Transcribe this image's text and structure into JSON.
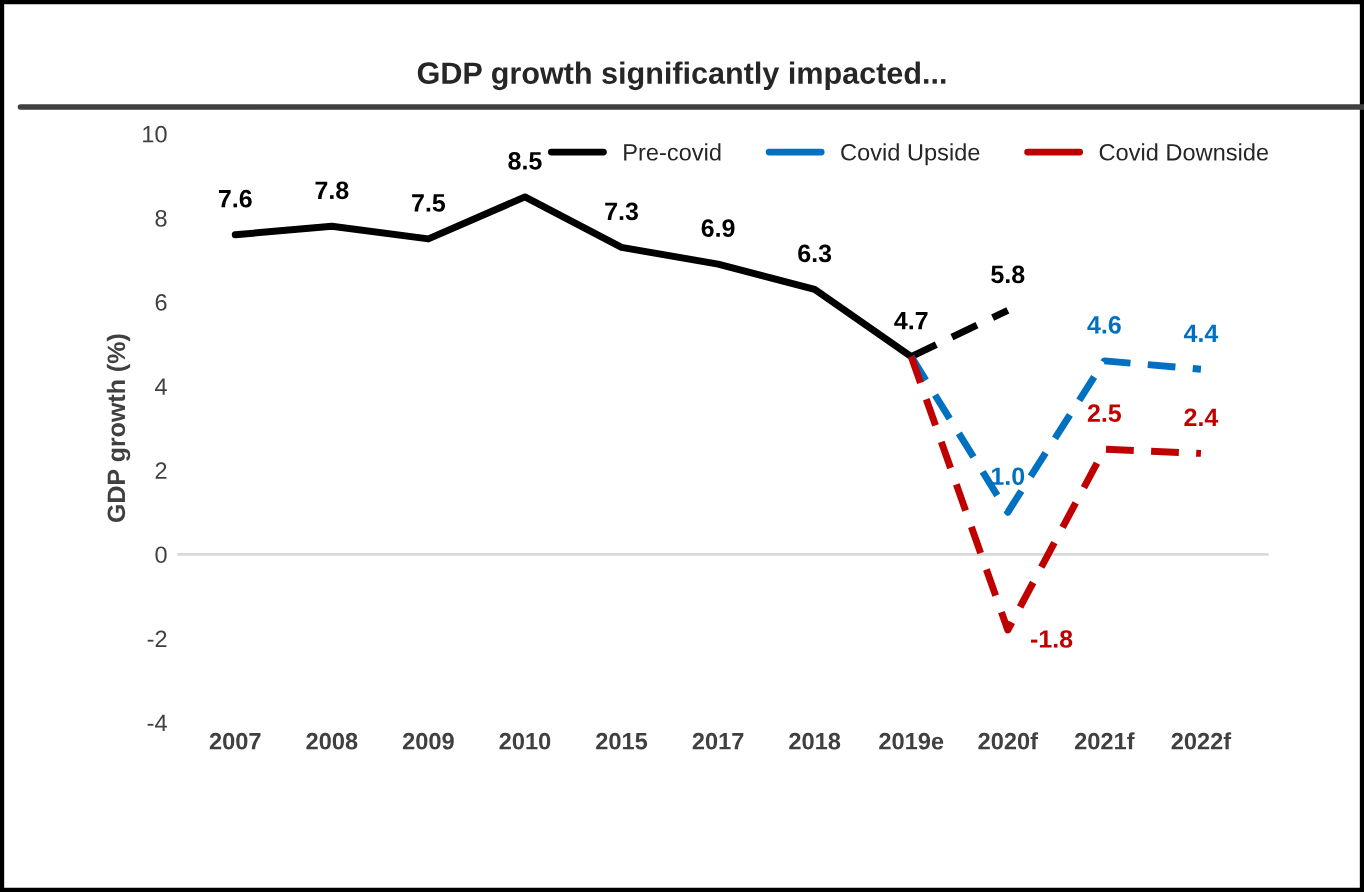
{
  "chart_data": {
    "type": "line",
    "title": "GDP growth significantly impacted...",
    "ylabel": "GDP growth (%)",
    "categories": [
      "2007",
      "2008",
      "2009",
      "2010",
      "2015",
      "2017",
      "2018",
      "2019e",
      "2020f",
      "2021f",
      "2022f"
    ],
    "series": [
      {
        "name": "Pre-covid",
        "color": "#000000",
        "line_style": "solid",
        "values": [
          7.6,
          7.8,
          7.5,
          8.5,
          7.3,
          6.9,
          6.3,
          4.7,
          null,
          null,
          null
        ],
        "value_labels": [
          "7.6",
          "7.8",
          "7.5",
          "8.5",
          "7.3",
          "6.9",
          "6.3",
          "4.7",
          null,
          null,
          null
        ]
      },
      {
        "color": "#000000",
        "line_style": "dashed",
        "values": [
          null,
          null,
          null,
          null,
          null,
          null,
          null,
          4.7,
          5.8,
          null,
          null
        ],
        "value_labels": [
          null,
          null,
          null,
          null,
          null,
          null,
          null,
          null,
          "5.8",
          null,
          null
        ]
      },
      {
        "name": "Covid Upside",
        "color": "#0070c0",
        "line_style": "dashed",
        "values": [
          null,
          null,
          null,
          null,
          null,
          null,
          null,
          4.7,
          1.0,
          4.6,
          4.4
        ],
        "value_labels": [
          null,
          null,
          null,
          null,
          null,
          null,
          null,
          null,
          "1.0",
          "4.6",
          "4.4"
        ]
      },
      {
        "name": "Covid Downside",
        "color": "#c00000",
        "line_style": "dashed",
        "values": [
          null,
          null,
          null,
          null,
          null,
          null,
          null,
          4.7,
          -1.8,
          2.5,
          2.4
        ],
        "value_labels": [
          null,
          null,
          null,
          null,
          null,
          null,
          null,
          null,
          "-1.8",
          "2.5",
          "2.4"
        ]
      }
    ],
    "ylim": [
      -4,
      10
    ],
    "yticks": [
      -4,
      -2,
      0,
      2,
      4,
      6,
      8,
      10
    ],
    "ref_lines": [
      {
        "axis": "y",
        "value": 0,
        "color": "#d9d9d9"
      }
    ],
    "legend": "top right",
    "grid": false,
    "marker": "none"
  }
}
